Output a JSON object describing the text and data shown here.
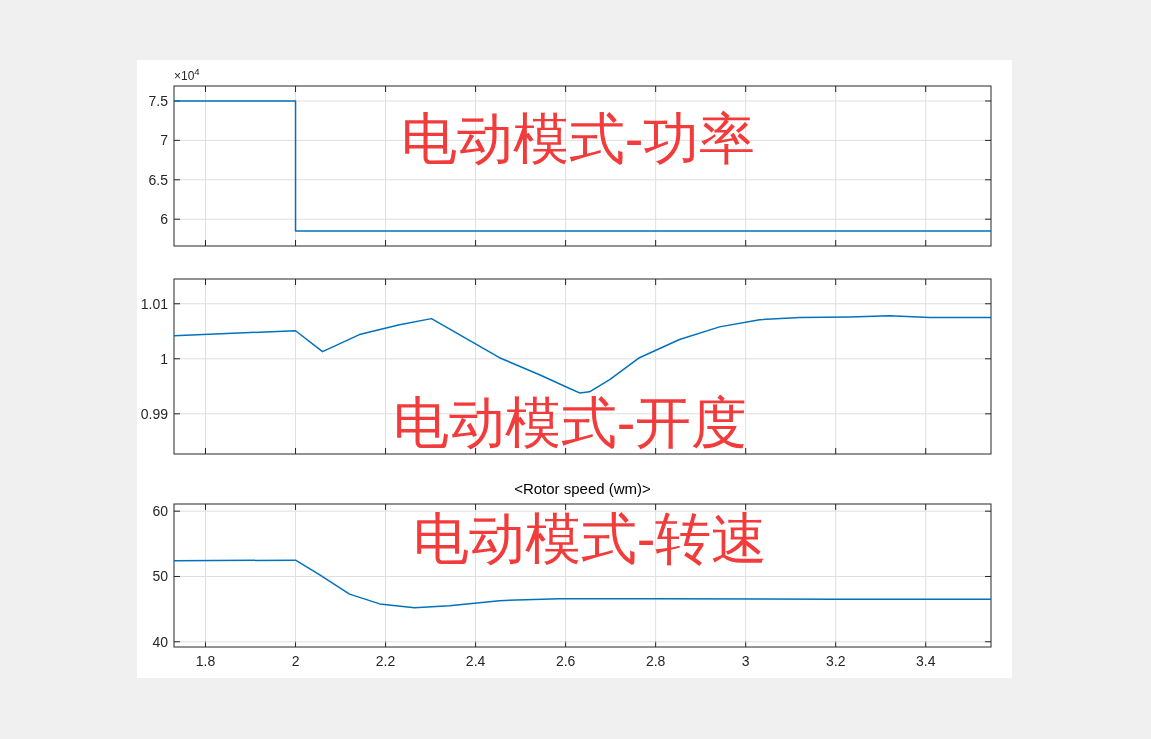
{
  "chart_data": [
    {
      "type": "step",
      "x": [
        1.73,
        2,
        3.545
      ],
      "series": [
        {
          "color": "#0072bd",
          "values": [
            7.5,
            5.85,
            5.85
          ]
        }
      ],
      "xlim": [
        1.73,
        3.545
      ],
      "ylim": [
        5.66,
        7.69
      ],
      "xticks": [
        1.8,
        2,
        2.2,
        2.4,
        2.6,
        2.8,
        3,
        3.2,
        3.4
      ],
      "yticks": [
        6,
        6.5,
        7,
        7.5
      ],
      "grid": true,
      "tick_labels": "y",
      "annotations": [
        "×10$^{4}$",
        "电动模式-功率"
      ]
    },
    {
      "type": "line",
      "x": [
        1.73,
        2,
        2.06,
        2.142,
        2.231,
        2.302,
        2.364,
        2.453,
        2.542,
        2.609,
        2.631,
        2.653,
        2.698,
        2.764,
        2.853,
        2.942,
        3.031,
        3.12,
        3.231,
        3.32,
        3.409,
        3.545
      ],
      "series": [
        {
          "color": "#0072bd",
          "values": [
            1.0042,
            1.0051,
            1.0013,
            1.0044,
            1.0062,
            1.0073,
            1.0044,
            1.0002,
            0.9971,
            0.9946,
            0.9938,
            0.994,
            0.9962,
            1.0002,
            1.0035,
            1.0058,
            1.0071,
            1.0075,
            1.0076,
            1.0078,
            1.0075,
            1.0075
          ]
        }
      ],
      "xlim": [
        1.73,
        3.545
      ],
      "ylim": [
        0.9827,
        1.0145
      ],
      "xticks": [
        1.8,
        2,
        2.2,
        2.4,
        2.6,
        2.8,
        3,
        3.2,
        3.4
      ],
      "yticks": [
        {
          "value": 0.99,
          "label": "0.99"
        },
        {
          "value": 1,
          "label": "1"
        },
        {
          "value": 1.01,
          "label": "1.01"
        }
      ],
      "grid": true,
      "tick_labels": "y",
      "annotations": [
        "电动模式-开度"
      ]
    },
    {
      "type": "line",
      "title": "<Rotor speed (wm)>",
      "x": [
        1.73,
        2,
        2.053,
        2.12,
        2.187,
        2.264,
        2.342,
        2.453,
        2.587,
        2.787,
        3.2,
        3.545
      ],
      "series": [
        {
          "color": "#0072bd",
          "values": [
            52.4,
            52.5,
            50.3,
            47.3,
            45.8,
            45.2,
            45.5,
            46.3,
            46.6,
            46.6,
            46.5,
            46.5
          ]
        }
      ],
      "xlim": [
        1.73,
        3.545
      ],
      "ylim": [
        39.2,
        61.1
      ],
      "xticks": [
        1.8,
        2,
        2.2,
        2.4,
        2.6,
        2.8,
        3,
        3.2,
        3.4
      ],
      "yticks": [
        40,
        50,
        60
      ],
      "grid": true,
      "annotations": [
        "电动模式-转速"
      ]
    }
  ]
}
